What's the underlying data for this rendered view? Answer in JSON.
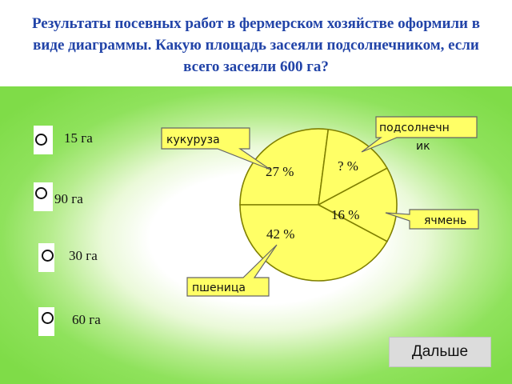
{
  "question": "Результаты посевных работ в фермерском хозяйстве оформили в виде диаграммы. Какую площадь засеяли подсолнечником, если всего засеяли 600 га?",
  "answers": [
    "15 га",
    "90 га",
    "30 га",
    "60 га"
  ],
  "chart_data": {
    "type": "pie",
    "slices": [
      {
        "label": "кукуруза",
        "percent_label": "27 %",
        "value": 27
      },
      {
        "label": "подсолнечник",
        "percent_label": "? %",
        "value": 15
      },
      {
        "label": "ячмень",
        "percent_label": "16 %",
        "value": 16
      },
      {
        "label": "пшеница",
        "percent_label": "42 %",
        "value": 42
      }
    ],
    "fill_color": "#ffff66",
    "stroke_color": "#808000"
  },
  "callouts": {
    "sunflower_line1": "подсолнечн",
    "sunflower_line2": "ик"
  },
  "next_button": "Дальше"
}
